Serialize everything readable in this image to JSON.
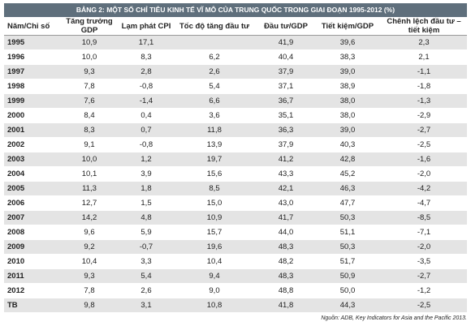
{
  "table": {
    "title": "BẢNG 2: MỘT SỐ CHỈ TIÊU KINH TẾ VĨ MÔ CỦA TRUNG QUỐC TRONG GIAI ĐOẠN 1995-2012 (%)",
    "headers": [
      "Năm/Chỉ số",
      "Tăng trưởng GDP",
      "Lạm phát CPI",
      "Tốc độ tăng đầu tư",
      "Đầu tư/GDP",
      "Tiết kiệm/GDP",
      "Chênh lệch đầu tư – tiết kiệm"
    ],
    "rows": [
      [
        "1995",
        "10,9",
        "17,1",
        null,
        "41,9",
        "39,6",
        "2,3"
      ],
      [
        "1996",
        "10,0",
        "8,3",
        "6,2",
        "40,4",
        "38,3",
        "2,1"
      ],
      [
        "1997",
        "9,3",
        "2,8",
        "2,6",
        "37,9",
        "39,0",
        "-1,1"
      ],
      [
        "1998",
        "7,8",
        "-0,8",
        "5,4",
        "37,1",
        "38,9",
        "-1,8"
      ],
      [
        "1999",
        "7,6",
        "-1,4",
        "6,6",
        "36,7",
        "38,0",
        "-1,3"
      ],
      [
        "2000",
        "8,4",
        "0,4",
        "3,6",
        "35,1",
        "38,0",
        "-2,9"
      ],
      [
        "2001",
        "8,3",
        "0,7",
        "11,8",
        "36,3",
        "39,0",
        "-2,7"
      ],
      [
        "2002",
        "9,1",
        "-0,8",
        "13,9",
        "37,9",
        "40,3",
        "-2,5"
      ],
      [
        "2003",
        "10,0",
        "1,2",
        "19,7",
        "41,2",
        "42,8",
        "-1,6"
      ],
      [
        "2004",
        "10,1",
        "3,9",
        "15,6",
        "43,3",
        "45,2",
        "-2,0"
      ],
      [
        "2005",
        "11,3",
        "1,8",
        "8,5",
        "42,1",
        "46,3",
        "-4,2"
      ],
      [
        "2006",
        "12,7",
        "1,5",
        "15,0",
        "43,0",
        "47,7",
        "-4,7"
      ],
      [
        "2007",
        "14,2",
        "4,8",
        "10,9",
        "41,7",
        "50,3",
        "-8,5"
      ],
      [
        "2008",
        "9,6",
        "5,9",
        "15,7",
        "44,0",
        "51,1",
        "-7,1"
      ],
      [
        "2009",
        "9,2",
        "-0,7",
        "19,6",
        "48,3",
        "50,3",
        "-2,0"
      ],
      [
        "2010",
        "10,4",
        "3,3",
        "10,4",
        "48,2",
        "51,7",
        "-3,5"
      ],
      [
        "2011",
        "9,3",
        "5,4",
        "9,4",
        "48,3",
        "50,9",
        "-2,7"
      ],
      [
        "2012",
        "7,8",
        "2,6",
        "9,0",
        "48,8",
        "50,0",
        "-1,2"
      ],
      [
        "TB",
        "9,8",
        "3,1",
        "10,8",
        "41,8",
        "44,3",
        "-2,5"
      ]
    ],
    "source": "Nguồn: ADB, Key Indicators for Asia and the Pacific 2013."
  }
}
